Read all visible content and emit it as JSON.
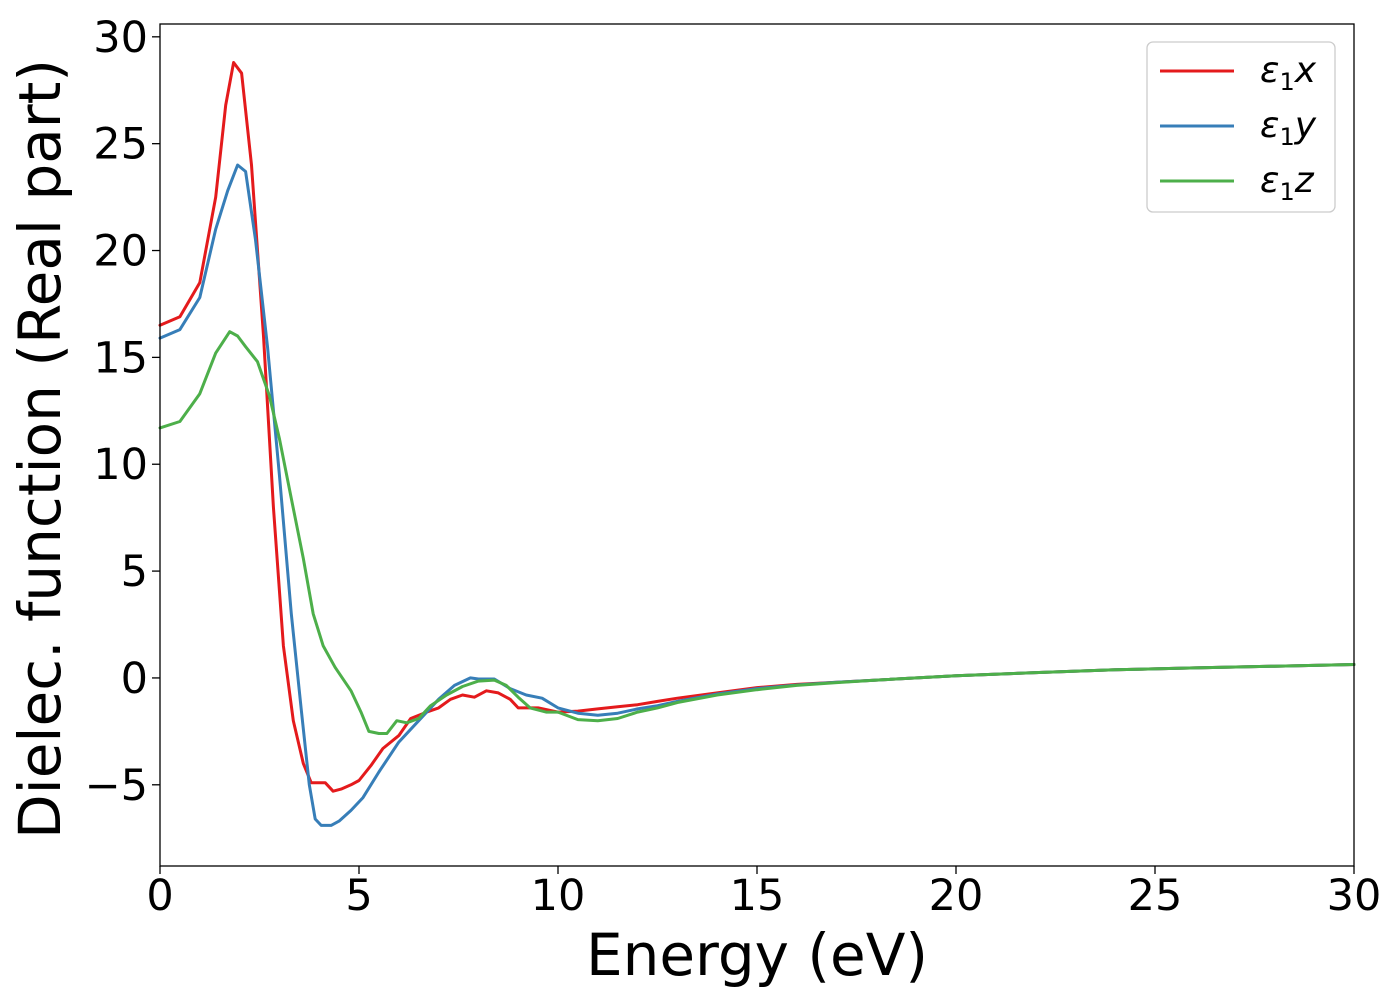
{
  "chart_data": {
    "type": "line",
    "title": "",
    "xlabel": "Energy (eV)",
    "ylabel": "Dielec. function (Real part)",
    "xlim": [
      0,
      30
    ],
    "ylim": [
      -8.8,
      30.6
    ],
    "xticks": [
      0,
      5,
      10,
      15,
      20,
      25,
      30
    ],
    "xtick_labels": [
      "0",
      "5",
      "10",
      "15",
      "20",
      "25",
      "30"
    ],
    "yticks": [
      -5,
      0,
      5,
      10,
      15,
      20,
      25,
      30
    ],
    "ytick_labels": [
      "−5",
      "0",
      "5",
      "10",
      "15",
      "20",
      "25",
      "30"
    ],
    "grid": false,
    "legend_position": "top-right",
    "series": [
      {
        "name": "ε1x",
        "symbol": "ε",
        "subscript": "1",
        "component": "x",
        "color": "#e41a1c",
        "points": [
          [
            0,
            16.5
          ],
          [
            0.5,
            16.9
          ],
          [
            1.0,
            18.5
          ],
          [
            1.4,
            22.5
          ],
          [
            1.65,
            26.8
          ],
          [
            1.85,
            28.8
          ],
          [
            2.05,
            28.3
          ],
          [
            2.3,
            24.0
          ],
          [
            2.6,
            16.0
          ],
          [
            2.85,
            8.0
          ],
          [
            3.1,
            1.5
          ],
          [
            3.35,
            -2.0
          ],
          [
            3.6,
            -4.0
          ],
          [
            3.8,
            -4.9
          ],
          [
            4.0,
            -4.9
          ],
          [
            4.15,
            -4.9
          ],
          [
            4.35,
            -5.3
          ],
          [
            4.55,
            -5.2
          ],
          [
            4.8,
            -5.0
          ],
          [
            5.0,
            -4.8
          ],
          [
            5.3,
            -4.1
          ],
          [
            5.6,
            -3.3
          ],
          [
            6.0,
            -2.7
          ],
          [
            6.3,
            -1.9
          ],
          [
            6.7,
            -1.6
          ],
          [
            7.0,
            -1.4
          ],
          [
            7.3,
            -1.0
          ],
          [
            7.6,
            -0.8
          ],
          [
            7.9,
            -0.9
          ],
          [
            8.2,
            -0.6
          ],
          [
            8.5,
            -0.7
          ],
          [
            8.8,
            -1.0
          ],
          [
            9.0,
            -1.4
          ],
          [
            9.5,
            -1.4
          ],
          [
            10.0,
            -1.6
          ],
          [
            10.5,
            -1.55
          ],
          [
            11.0,
            -1.45
          ],
          [
            11.5,
            -1.35
          ],
          [
            12.0,
            -1.25
          ],
          [
            12.5,
            -1.1
          ],
          [
            13.0,
            -0.95
          ],
          [
            14.0,
            -0.7
          ],
          [
            15.0,
            -0.45
          ],
          [
            16.0,
            -0.3
          ],
          [
            17.0,
            -0.2
          ],
          [
            18.0,
            -0.1
          ],
          [
            20.0,
            0.1
          ],
          [
            22.0,
            0.25
          ],
          [
            24.0,
            0.38
          ],
          [
            26.0,
            0.47
          ],
          [
            28.0,
            0.55
          ],
          [
            30.0,
            0.63
          ]
        ]
      },
      {
        "name": "ε1y",
        "symbol": "ε",
        "subscript": "1",
        "component": "y",
        "color": "#377eb8",
        "points": [
          [
            0,
            15.9
          ],
          [
            0.5,
            16.3
          ],
          [
            1.0,
            17.8
          ],
          [
            1.4,
            21.0
          ],
          [
            1.7,
            22.8
          ],
          [
            1.95,
            24.0
          ],
          [
            2.15,
            23.7
          ],
          [
            2.4,
            20.5
          ],
          [
            2.7,
            15.5
          ],
          [
            3.0,
            9.5
          ],
          [
            3.3,
            3.0
          ],
          [
            3.55,
            -1.5
          ],
          [
            3.75,
            -5.0
          ],
          [
            3.9,
            -6.6
          ],
          [
            4.05,
            -6.9
          ],
          [
            4.3,
            -6.9
          ],
          [
            4.5,
            -6.7
          ],
          [
            4.8,
            -6.2
          ],
          [
            5.1,
            -5.6
          ],
          [
            5.5,
            -4.4
          ],
          [
            6.0,
            -3.0
          ],
          [
            6.5,
            -2.0
          ],
          [
            7.0,
            -1.0
          ],
          [
            7.4,
            -0.35
          ],
          [
            7.8,
            0.0
          ],
          [
            8.0,
            -0.05
          ],
          [
            8.4,
            -0.05
          ],
          [
            8.8,
            -0.5
          ],
          [
            9.2,
            -0.8
          ],
          [
            9.6,
            -0.95
          ],
          [
            10.0,
            -1.4
          ],
          [
            10.5,
            -1.65
          ],
          [
            11.0,
            -1.75
          ],
          [
            11.5,
            -1.65
          ],
          [
            12.0,
            -1.45
          ],
          [
            12.5,
            -1.3
          ],
          [
            13.0,
            -1.1
          ],
          [
            14.0,
            -0.75
          ],
          [
            15.0,
            -0.5
          ],
          [
            16.0,
            -0.33
          ],
          [
            17.0,
            -0.2
          ],
          [
            18.0,
            -0.1
          ],
          [
            20.0,
            0.1
          ],
          [
            22.0,
            0.25
          ],
          [
            24.0,
            0.38
          ],
          [
            26.0,
            0.47
          ],
          [
            28.0,
            0.55
          ],
          [
            30.0,
            0.63
          ]
        ]
      },
      {
        "name": "ε1z",
        "symbol": "ε",
        "subscript": "1",
        "component": "z",
        "color": "#4daf4a",
        "points": [
          [
            0,
            11.7
          ],
          [
            0.5,
            12.0
          ],
          [
            1.0,
            13.3
          ],
          [
            1.4,
            15.2
          ],
          [
            1.75,
            16.2
          ],
          [
            1.95,
            16.0
          ],
          [
            2.15,
            15.5
          ],
          [
            2.45,
            14.8
          ],
          [
            2.75,
            13.2
          ],
          [
            3.0,
            11.2
          ],
          [
            3.3,
            8.4
          ],
          [
            3.6,
            5.6
          ],
          [
            3.85,
            3.0
          ],
          [
            4.1,
            1.5
          ],
          [
            4.4,
            0.5
          ],
          [
            4.8,
            -0.6
          ],
          [
            5.05,
            -1.6
          ],
          [
            5.25,
            -2.5
          ],
          [
            5.5,
            -2.6
          ],
          [
            5.7,
            -2.6
          ],
          [
            5.95,
            -2.0
          ],
          [
            6.2,
            -2.1
          ],
          [
            6.5,
            -1.9
          ],
          [
            6.8,
            -1.3
          ],
          [
            7.2,
            -0.8
          ],
          [
            7.6,
            -0.4
          ],
          [
            8.0,
            -0.15
          ],
          [
            8.4,
            -0.1
          ],
          [
            8.7,
            -0.35
          ],
          [
            9.0,
            -0.9
          ],
          [
            9.3,
            -1.4
          ],
          [
            9.7,
            -1.6
          ],
          [
            10.0,
            -1.6
          ],
          [
            10.5,
            -1.95
          ],
          [
            11.0,
            -2.0
          ],
          [
            11.5,
            -1.9
          ],
          [
            12.0,
            -1.6
          ],
          [
            12.5,
            -1.4
          ],
          [
            13.0,
            -1.15
          ],
          [
            14.0,
            -0.8
          ],
          [
            15.0,
            -0.55
          ],
          [
            16.0,
            -0.35
          ],
          [
            17.0,
            -0.22
          ],
          [
            18.0,
            -0.1
          ],
          [
            20.0,
            0.1
          ],
          [
            22.0,
            0.25
          ],
          [
            24.0,
            0.38
          ],
          [
            26.0,
            0.47
          ],
          [
            28.0,
            0.55
          ],
          [
            30.0,
            0.63
          ]
        ]
      }
    ]
  }
}
